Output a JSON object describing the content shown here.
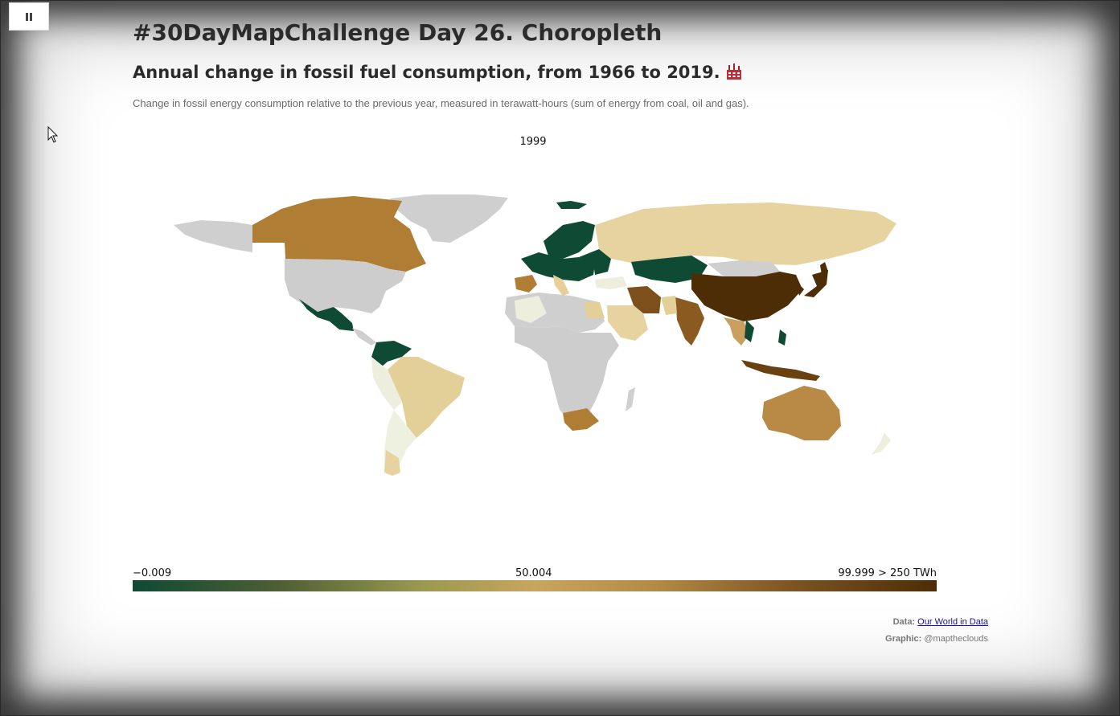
{
  "header": {
    "title": "#30DayMapChallenge Day 26. Choropleth",
    "subtitle": "Annual change in fossil fuel consumption, from 1966 to 2019.",
    "description": "Change in fossil energy consumption relative to the previous year, measured in terawatt-hours (sum of energy from coal, oil and gas)."
  },
  "controls": {
    "pause_icon": "pause-icon"
  },
  "map": {
    "year": "1999",
    "no_data_color": "#cccccc",
    "regions": [
      {
        "name": "Canada",
        "category": "mid-brown"
      },
      {
        "name": "United States",
        "category": "no-data"
      },
      {
        "name": "Mexico",
        "category": "dark-green"
      },
      {
        "name": "Brazil",
        "category": "light-tan"
      },
      {
        "name": "Argentina",
        "category": "pale"
      },
      {
        "name": "Europe (north)",
        "category": "dark-green"
      },
      {
        "name": "Russia",
        "category": "light-tan"
      },
      {
        "name": "Kazakhstan",
        "category": "dark-green"
      },
      {
        "name": "China",
        "category": "dark-brown"
      },
      {
        "name": "India",
        "category": "brown"
      },
      {
        "name": "Iran",
        "category": "brown"
      },
      {
        "name": "Australia",
        "category": "mid-brown"
      },
      {
        "name": "Africa",
        "category": "no-data"
      },
      {
        "name": "South Africa",
        "category": "mid-brown"
      }
    ]
  },
  "legend": {
    "min_label": "−0.009",
    "mid_label": "50.004",
    "max_label": "99.999 > 250 TWh",
    "colors": [
      "#0f4a35",
      "#c9a55f",
      "#4c2d06"
    ]
  },
  "credits": {
    "data_label": "Data:",
    "data_link": "Our World in Data",
    "graphic_label": "Graphic:",
    "graphic_author": "@mapthe­clouds"
  }
}
